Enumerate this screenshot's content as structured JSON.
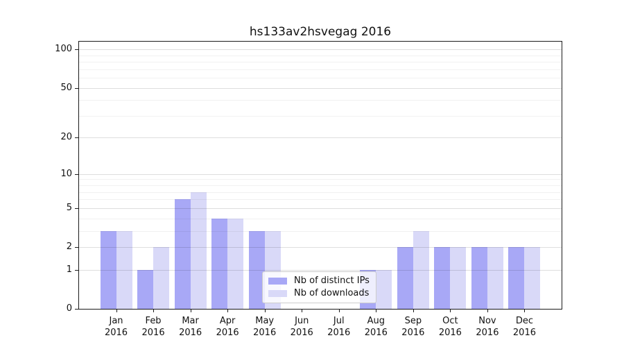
{
  "title": "hs133av2hsvegag 2016",
  "legend": {
    "items": [
      {
        "label": "Nb of distinct IPs",
        "color": "#a8a8f6"
      },
      {
        "label": "Nb of downloads",
        "color": "#d9d9f8"
      }
    ]
  },
  "chart_data": {
    "type": "bar",
    "title": "hs133av2hsvegag 2016",
    "categories": [
      "Jan 2016",
      "Feb 2016",
      "Mar 2016",
      "Apr 2016",
      "May 2016",
      "Jun 2016",
      "Jul 2016",
      "Aug 2016",
      "Sep 2016",
      "Oct 2016",
      "Nov 2016",
      "Dec 2016"
    ],
    "series": [
      {
        "name": "Nb of distinct IPs",
        "color": "#a8a8f6",
        "values": [
          3,
          1,
          6,
          4,
          3,
          0,
          0,
          1,
          2,
          2,
          2,
          2
        ]
      },
      {
        "name": "Nb of downloads",
        "color": "#d9d9f8",
        "values": [
          3,
          2,
          7,
          4,
          3,
          0,
          0,
          1,
          3,
          2,
          2,
          2
        ]
      }
    ],
    "xlabel": "",
    "ylabel": "",
    "yscale": "log1p",
    "ylim": [
      0,
      115
    ],
    "yticks": [
      0,
      1,
      2,
      5,
      10,
      20,
      50,
      100
    ],
    "minor_yticks": [
      3,
      4,
      6,
      7,
      8,
      9,
      30,
      40,
      60,
      70,
      80,
      90
    ],
    "grid": "horizontal, drawn above bars",
    "legend_position": "lower center inside plot",
    "colors": {
      "axis": "#1a1a1a",
      "grid_major": "#dddddd",
      "grid_minor": "#efefef",
      "background": "#ffffff"
    }
  }
}
